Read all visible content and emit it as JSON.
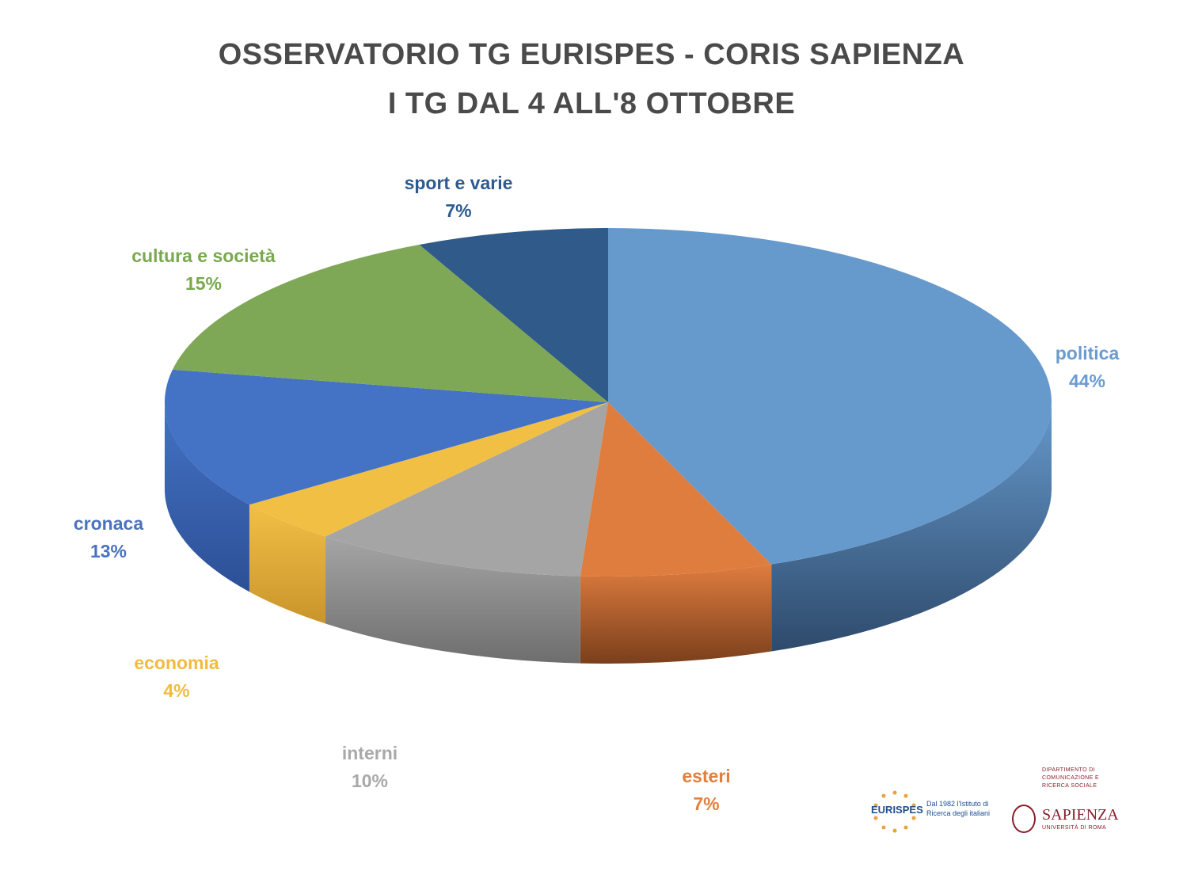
{
  "title": {
    "line1": "OSSERVATORIO  TG EURISPES  - CORIS SAPIENZA",
    "line2": "I TG DAL 4 ALL'8 OTTOBRE"
  },
  "chart_data": {
    "type": "pie",
    "title": "OSSERVATORIO  TG EURISPES  - CORIS SAPIENZA / I TG DAL 4 ALL'8 OTTOBRE",
    "slices": [
      {
        "label": "politica",
        "value": 44,
        "display": "44%",
        "color": "#6699cc",
        "side": "#2e4a6b",
        "text_color": "#6a9bd1"
      },
      {
        "label": "esteri",
        "value": 7,
        "display": "7%",
        "color": "#df7d3f",
        "side": "#7a3f1c",
        "text_color": "#e0803e"
      },
      {
        "label": "interni",
        "value": 10,
        "display": "10%",
        "color": "#a5a5a5",
        "side": "#6e6e6e",
        "text_color": "#a9a9a9"
      },
      {
        "label": "economia",
        "value": 4,
        "display": "4%",
        "color": "#f2bf45",
        "side": "#c9952c",
        "text_color": "#f1bb3f"
      },
      {
        "label": "cronaca",
        "value": 13,
        "display": "13%",
        "color": "#4472c4",
        "side": "#2c5096",
        "text_color": "#4a72c0"
      },
      {
        "label": "cultura e società",
        "value": 15,
        "display": "15%",
        "color": "#7ea856",
        "side": "#56773a",
        "text_color": "#78a94d"
      },
      {
        "label": "sport e varie",
        "value": 7,
        "display": "7%",
        "color": "#2f5a8a",
        "side": "#1f3c5e",
        "text_color": "#2d5a8f"
      }
    ],
    "label_positions": "outside"
  },
  "logos": {
    "eurispes": {
      "name": "EURISPES",
      "tagline": "Dal 1982 l'Istituto di Ricerca degli italiani"
    },
    "sapienza": {
      "department": "Dipartimento di Comunicazione e Ricerca Sociale",
      "name": "SAPIENZA",
      "university": "Università di Roma"
    }
  }
}
